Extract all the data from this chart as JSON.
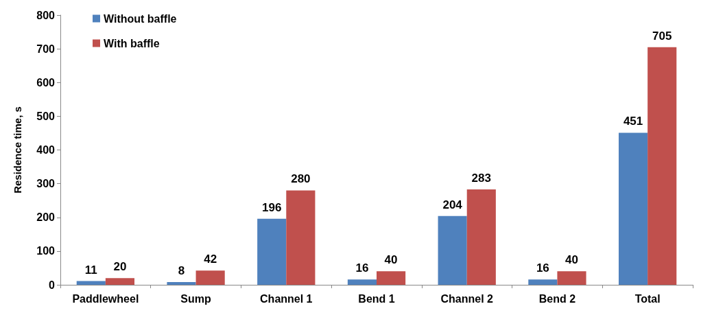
{
  "chart_data": {
    "type": "bar",
    "ylabel": "Residence time, s",
    "categories": [
      "Paddlewheel",
      "Sump",
      "Channel 1",
      "Bend 1",
      "Channel 2",
      "Bend 2",
      "Total"
    ],
    "series": [
      {
        "name": "Without baffle",
        "color": "#4f81bd",
        "values": [
          11,
          8,
          196,
          16,
          204,
          16,
          451
        ]
      },
      {
        "name": "With baffle",
        "color": "#c0504d",
        "values": [
          20,
          42,
          280,
          40,
          283,
          40,
          705
        ]
      }
    ],
    "ylim": [
      0,
      800
    ],
    "yticks": [
      0,
      100,
      200,
      300,
      400,
      500,
      600,
      700,
      800
    ],
    "grid": false,
    "legend": "top left",
    "data_labels": true
  }
}
